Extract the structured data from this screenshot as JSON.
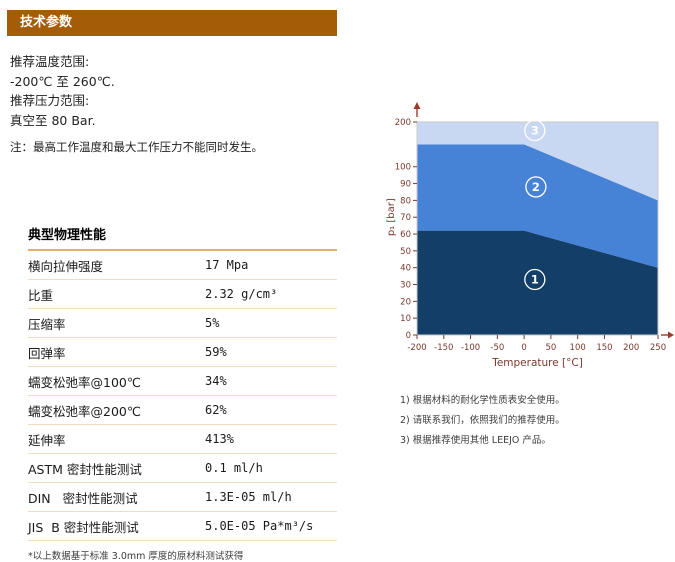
{
  "header": {
    "title": "技术参数",
    "bar_color": "#a55c06",
    "text_color": "#ffffff"
  },
  "intro": {
    "lines": [
      "推荐温度范围:",
      "-200℃ 至 260℃.",
      "推荐压力范围:",
      "真空至 80 Bar."
    ]
  },
  "note": "注：最高工作温度和最大工作压力不能同时发生。",
  "spec_table": {
    "title": "典型物理性能",
    "rows": [
      {
        "label": "横向拉伸强度",
        "value": "17 Mpa"
      },
      {
        "label": "比重",
        "value": "2.32 g/cm³"
      },
      {
        "label": "压缩率",
        "value": "5%"
      },
      {
        "label": "回弹率",
        "value": "59%"
      },
      {
        "label": "蠕变松弛率@100℃",
        "value": "34%"
      },
      {
        "label": "蠕变松弛率@200℃",
        "value": "62%"
      },
      {
        "label": "延伸率",
        "value": "413%"
      },
      {
        "label": "ASTM 密封性能测试",
        "value": "0.1 ml/h"
      },
      {
        "label": "DIN   密封性能测试",
        "value": "1.3E-05 ml/h"
      },
      {
        "label": "JIS  B 密封性能测试",
        "value": "5.0E-05 Pa*m³/s"
      }
    ],
    "footnote": "*以上数据基于标准 3.0mm 厚度的原材料测试获得"
  },
  "chart_data": {
    "type": "area",
    "title": "",
    "xlabel": "Temperature [°C]",
    "ylabel": "p₁ [bar]",
    "xlim": [
      -200,
      250
    ],
    "ylim": [
      0,
      200
    ],
    "x_ticks": [
      -200,
      -150,
      -100,
      -50,
      0,
      50,
      100,
      150,
      200,
      250
    ],
    "y_ticks": [
      0,
      10,
      20,
      30,
      40,
      50,
      60,
      70,
      80,
      90,
      100,
      200
    ],
    "y_axis_note": "non-linear: 100 to 200 compressed into top segment",
    "grid": false,
    "regions": [
      {
        "id": "1",
        "label": "1",
        "color": "#123e68",
        "upper_boundary": [
          [
            -200,
            62
          ],
          [
            0,
            62
          ],
          [
            250,
            40
          ]
        ],
        "label_pos": [
          20,
          33
        ]
      },
      {
        "id": "2",
        "label": "2",
        "color": "#4682d6",
        "upper_boundary": [
          [
            -200,
            150
          ],
          [
            0,
            150
          ],
          [
            250,
            80
          ]
        ],
        "label_pos": [
          22,
          88
        ]
      },
      {
        "id": "3",
        "label": "3",
        "color": "#c9d8f2",
        "upper_boundary": [
          [
            -200,
            200
          ],
          [
            250,
            200
          ]
        ],
        "label_pos": [
          20,
          181
        ]
      }
    ],
    "colors": {
      "axis_text": "#79392e",
      "arrow": "#9e3b28",
      "border": "#c9c9c9",
      "region_label": "#ffffff"
    }
  },
  "chart_footnotes": [
    "1) 根据材料的耐化学性质表安全使用。",
    "2) 请联系我们，依照我们的推荐使用。",
    "3) 根据推荐使用其他 LEEJO 产品。"
  ]
}
